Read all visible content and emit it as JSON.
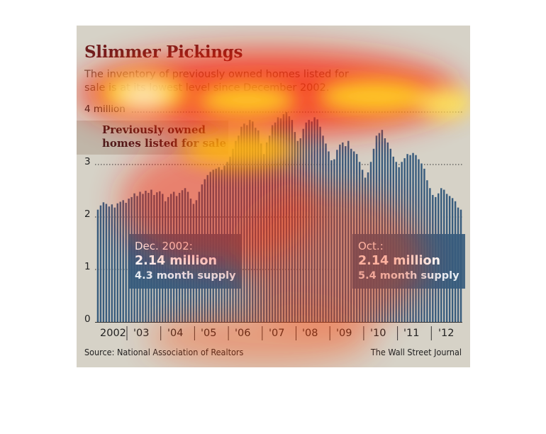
{
  "title": "Slimmer Pickings",
  "subtitle": "The inventory of previously owned homes listed for sale is at its lowest level since December 2002.",
  "legend_label": "Previously owned homes listed for sale",
  "callout_left": {
    "line1": "Dec. 2002:",
    "line2": "2.14 million",
    "line3": "4.3 month supply"
  },
  "callout_right": {
    "line1": "Oct.:",
    "line2": "2.14 million",
    "line3": "5.4 month supply"
  },
  "source": "Source: National Association of Realtors",
  "credit": "The Wall Street Journal",
  "colors": {
    "bar": "#385c7d",
    "panel": "#d6d2c7",
    "title": "#6b1f1f"
  },
  "chart_data": {
    "type": "bar",
    "ylim": [
      0,
      4
    ],
    "y_ticks": [
      {
        "value": 4,
        "label": "4 million"
      },
      {
        "value": 3,
        "label": "3"
      },
      {
        "value": 2,
        "label": "2"
      },
      {
        "value": 1,
        "label": "1"
      },
      {
        "value": 0,
        "label": "0"
      }
    ],
    "x_labels": [
      "2002",
      "'03",
      "'04",
      "'05",
      "'06",
      "'07",
      "'08",
      "'09",
      "'10",
      "'11",
      "'12"
    ],
    "unit": "million",
    "series": [
      {
        "values": [
          2.14,
          2.22,
          2.28,
          2.25,
          2.2,
          2.24,
          2.18,
          2.26,
          2.29,
          2.32,
          2.27,
          2.35,
          2.38,
          2.45,
          2.4,
          2.48,
          2.44,
          2.5,
          2.46,
          2.52,
          2.42,
          2.47,
          2.49,
          2.44,
          2.3,
          2.38,
          2.44,
          2.48,
          2.4,
          2.46,
          2.51,
          2.55,
          2.48,
          2.35,
          2.25,
          2.32,
          2.48,
          2.62,
          2.72,
          2.8,
          2.86,
          2.9,
          2.92,
          2.95,
          2.9,
          2.98,
          3.05,
          3.15,
          3.3,
          3.45,
          3.55,
          3.72,
          3.78,
          3.75,
          3.85,
          3.82,
          3.7,
          3.65,
          3.4,
          3.2,
          3.42,
          3.55,
          3.75,
          3.8,
          3.9,
          3.88,
          3.96,
          4.0,
          3.92,
          3.85,
          3.62,
          3.45,
          3.5,
          3.68,
          3.8,
          3.85,
          3.82,
          3.9,
          3.86,
          3.72,
          3.55,
          3.4,
          3.25,
          3.08,
          3.1,
          3.28,
          3.38,
          3.42,
          3.35,
          3.45,
          3.3,
          3.25,
          3.2,
          3.05,
          2.9,
          2.75,
          2.85,
          3.05,
          3.3,
          3.55,
          3.6,
          3.66,
          3.5,
          3.42,
          3.3,
          3.15,
          3.05,
          2.95,
          3.05,
          3.12,
          3.2,
          3.18,
          3.22,
          3.18,
          3.1,
          3.02,
          2.92,
          2.7,
          2.55,
          2.42,
          2.38,
          2.45,
          2.55,
          2.52,
          2.44,
          2.4,
          2.36,
          2.3,
          2.18,
          2.14
        ]
      }
    ]
  }
}
